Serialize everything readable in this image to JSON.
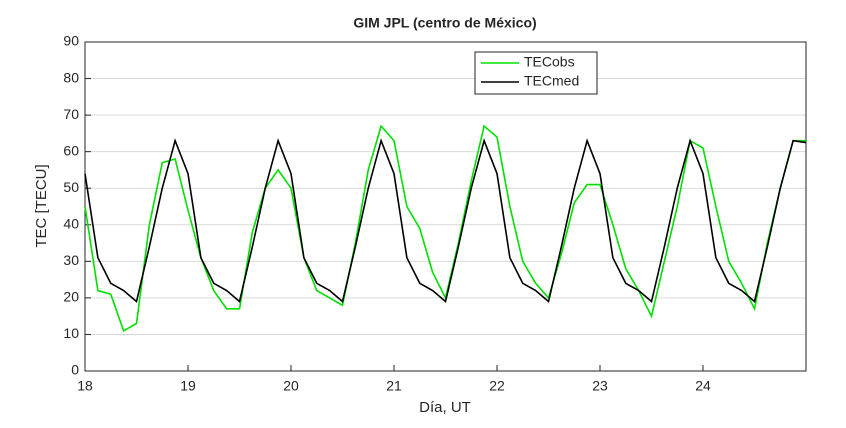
{
  "chart_data": {
    "type": "line",
    "title": "GIM JPL (centro de México)",
    "xlabel": "Día, UT",
    "ylabel": "TEC [TECU]",
    "x": [
      18,
      18.125,
      18.25,
      18.375,
      18.5,
      18.625,
      18.75,
      18.875,
      19,
      19.125,
      19.25,
      19.375,
      19.5,
      19.625,
      19.75,
      19.875,
      20,
      20.125,
      20.25,
      20.375,
      20.5,
      20.625,
      20.75,
      20.875,
      21,
      21.125,
      21.25,
      21.375,
      21.5,
      21.625,
      21.75,
      21.875,
      22,
      22.125,
      22.25,
      22.375,
      22.5,
      22.625,
      22.75,
      22.875,
      23,
      23.125,
      23.25,
      23.375,
      23.5,
      23.625,
      23.75,
      23.875,
      24,
      24.125,
      24.25,
      24.375,
      24.5,
      24.625,
      24.75,
      24.875,
      25
    ],
    "series": [
      {
        "name": "TECobs",
        "color": "#00e000",
        "values": [
          45,
          22,
          21,
          11,
          13,
          40,
          57,
          58,
          44,
          31,
          22,
          17,
          17,
          38,
          50,
          55,
          50,
          31,
          22,
          20,
          18,
          35,
          55,
          67,
          63,
          45,
          39,
          27,
          20,
          35,
          52,
          67,
          64,
          45,
          30,
          24,
          20,
          32,
          46,
          51,
          51,
          40,
          28,
          22,
          15,
          30,
          45,
          63,
          61,
          45,
          30,
          24,
          17,
          35,
          50,
          63,
          63
        ]
      },
      {
        "name": "TECmed",
        "color": "#000000",
        "values": [
          54,
          31,
          24,
          22,
          19,
          34,
          50,
          63,
          54,
          31,
          24,
          22,
          19,
          34,
          50,
          63,
          54,
          31,
          24,
          22,
          19,
          34,
          50,
          63,
          54,
          31,
          24,
          22,
          19,
          34,
          50,
          63,
          54,
          31,
          24,
          22,
          19,
          34,
          50,
          63,
          54,
          31,
          24,
          22,
          19,
          34,
          50,
          63,
          54,
          31,
          24,
          22,
          19,
          34,
          50,
          63,
          62.5
        ]
      }
    ],
    "xlim": [
      18,
      25
    ],
    "xticks": [
      18,
      19,
      20,
      21,
      22,
      23,
      24
    ],
    "ylim": [
      0,
      90
    ],
    "yticks": [
      0,
      10,
      20,
      30,
      40,
      50,
      60,
      70,
      80,
      90
    ],
    "grid": true,
    "legend": "north-east"
  }
}
